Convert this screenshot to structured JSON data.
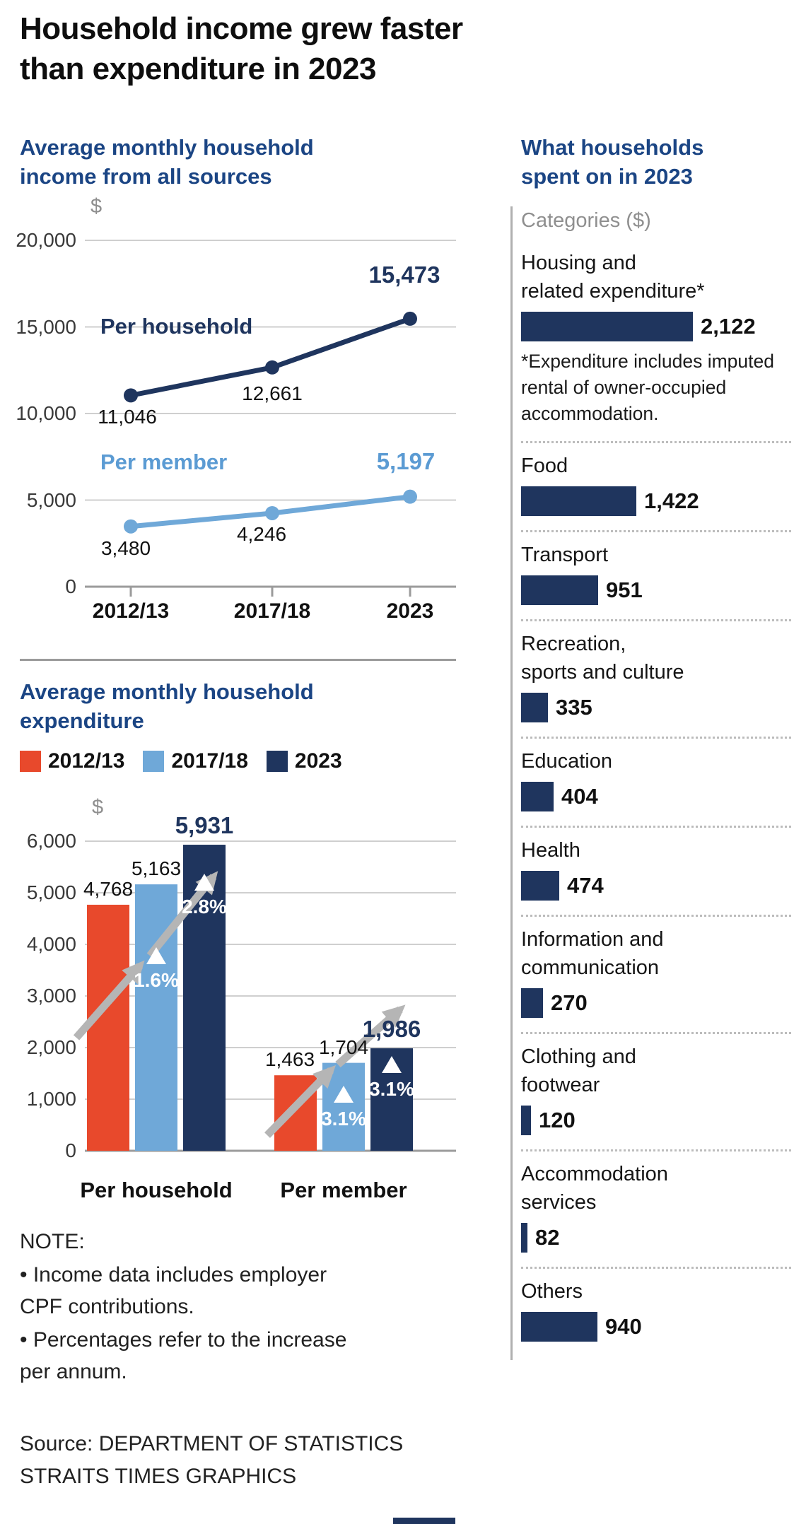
{
  "title": {
    "lines": [
      "Household income grew faster",
      "than expenditure in 2023"
    ]
  },
  "colors": {
    "navy": "#1f355e",
    "heading_blue": "#1b4584",
    "light_blue": "#6fa8d8",
    "light_blue_text": "#5b9bd3",
    "orange": "#e8492c",
    "grid": "#cfcfcf",
    "axis": "#9b9b9b",
    "arrow": "#b5b5b5",
    "muted": "#8f8f8f"
  },
  "note": {
    "heading": "NOTE:",
    "bullets": [
      "• Income data includes employer CPF contributions.",
      "• Percentages refer to the increase per annum."
    ]
  },
  "source": {
    "lines": [
      "Source: DEPARTMENT OF STATISTICS",
      "STRAITS TIMES GRAPHICS"
    ]
  },
  "chart_data": [
    {
      "id": "income",
      "type": "line",
      "heading_lines": [
        "Average monthly household",
        "income from all sources"
      ],
      "currency_symbol": "$",
      "x_labels": [
        "2012/13",
        "2017/18",
        "2023"
      ],
      "ylim": [
        0,
        20000
      ],
      "grid": true,
      "y_ticks": [
        {
          "value": 20000,
          "label": "20,000"
        },
        {
          "value": 15000,
          "label": "15,000"
        },
        {
          "value": 10000,
          "label": "10,000"
        },
        {
          "value": 5000,
          "label": "5,000"
        },
        {
          "value": 0,
          "label": "0"
        }
      ],
      "series": [
        {
          "name": "Per household",
          "color_key": "navy",
          "values": [
            11046,
            12661,
            15473
          ],
          "value_labels": [
            "11,046",
            "12,661",
            "15,473"
          ]
        },
        {
          "name": "Per member",
          "color_key": "light_blue",
          "values": [
            3480,
            4246,
            5197
          ],
          "value_labels": [
            "3,480",
            "4,246",
            "5,197"
          ]
        }
      ]
    },
    {
      "id": "expenditure",
      "type": "bar",
      "heading_lines": [
        "Average monthly household",
        "expenditure"
      ],
      "currency_symbol": "$",
      "ylim": [
        0,
        6000
      ],
      "grid": true,
      "y_ticks": [
        {
          "value": 6000,
          "label": "6,000"
        },
        {
          "value": 5000,
          "label": "5,000"
        },
        {
          "value": 4000,
          "label": "4,000"
        },
        {
          "value": 3000,
          "label": "3,000"
        },
        {
          "value": 2000,
          "label": "2,000"
        },
        {
          "value": 1000,
          "label": "1,000"
        },
        {
          "value": 0,
          "label": "0"
        }
      ],
      "legend": [
        {
          "label": "2012/13",
          "color_key": "orange"
        },
        {
          "label": "2017/18",
          "color_key": "light_blue"
        },
        {
          "label": "2023",
          "color_key": "navy"
        }
      ],
      "groups": [
        {
          "label": "Per household",
          "bars": [
            {
              "value": 4768,
              "value_label": "4,768"
            },
            {
              "value": 5163,
              "value_label": "5,163",
              "pct": "1.6%"
            },
            {
              "value": 5931,
              "value_label": "5,931",
              "pct": "2.8%"
            }
          ]
        },
        {
          "label": "Per member",
          "bars": [
            {
              "value": 1463,
              "value_label": "1,463"
            },
            {
              "value": 1704,
              "value_label": "1,704",
              "pct": "3.1%"
            },
            {
              "value": 1986,
              "value_label": "1,986",
              "pct": "3.1%"
            }
          ]
        }
      ]
    },
    {
      "id": "spending",
      "type": "bar-horizontal",
      "heading_lines": [
        "What households",
        "spent on in 2023"
      ],
      "axis_label": "Categories ($)",
      "max_value": 2122,
      "items": [
        {
          "label": "Housing and\nrelated expenditure*",
          "value": 2122,
          "value_label": "2,122",
          "footnote": "*Expenditure includes imputed\nrental of owner-occupied\naccommodation."
        },
        {
          "label": "Food",
          "value": 1422,
          "value_label": "1,422"
        },
        {
          "label": "Transport",
          "value": 951,
          "value_label": "951"
        },
        {
          "label": "Recreation,\nsports and culture",
          "value": 335,
          "value_label": "335"
        },
        {
          "label": "Education",
          "value": 404,
          "value_label": "404"
        },
        {
          "label": "Health",
          "value": 474,
          "value_label": "474"
        },
        {
          "label": "Information and\ncommunication",
          "value": 270,
          "value_label": "270"
        },
        {
          "label": "Clothing and\nfootwear",
          "value": 120,
          "value_label": "120"
        },
        {
          "label": "Accommodation\nservices",
          "value": 82,
          "value_label": "82"
        },
        {
          "label": "Others",
          "value": 940,
          "value_label": "940"
        }
      ]
    }
  ]
}
